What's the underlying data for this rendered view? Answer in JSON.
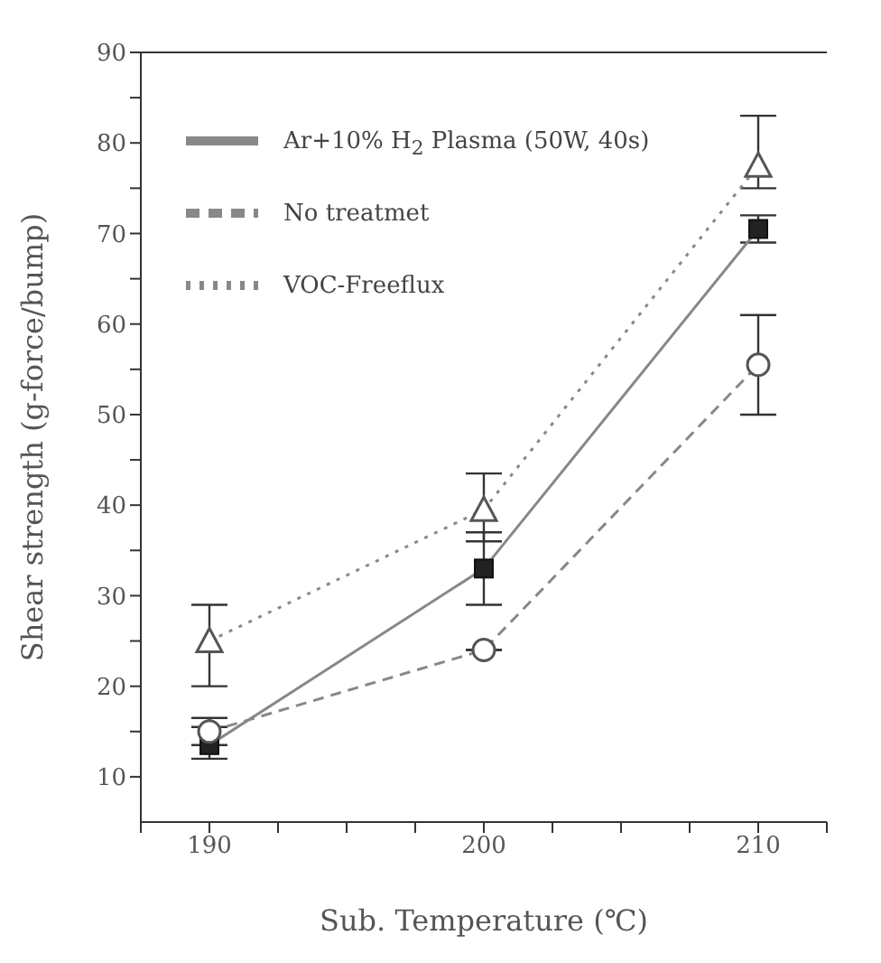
{
  "chart_data": {
    "type": "line",
    "xlabel": "Sub. Temperature (℃)",
    "ylabel": "Shear strength (g-force/bump)",
    "x": [
      190,
      200,
      210
    ],
    "xlim": [
      187.5,
      212.5
    ],
    "xticks": [
      {
        "value": 187.5,
        "label": null
      },
      190,
      {
        "value": 192.5,
        "label": null
      },
      {
        "value": 195,
        "label": null
      },
      {
        "value": 197.5,
        "label": null
      },
      200,
      {
        "value": 202.5,
        "label": null
      },
      {
        "value": 205,
        "label": null
      },
      {
        "value": 207.5,
        "label": null
      },
      210,
      {
        "value": 212.5,
        "label": null
      }
    ],
    "ylim": [
      5,
      90
    ],
    "yticks": [
      10,
      {
        "value": 15,
        "label": null
      },
      20,
      {
        "value": 25,
        "label": null
      },
      30,
      {
        "value": 35,
        "label": null
      },
      40,
      {
        "value": 45,
        "label": null
      },
      50,
      {
        "value": 55,
        "label": null
      },
      60,
      {
        "value": 65,
        "label": null
      },
      70,
      {
        "value": 75,
        "label": null
      },
      80,
      {
        "value": 85,
        "label": null
      },
      90
    ],
    "grid": false,
    "legend": "top left",
    "series": [
      {
        "name": "Ar+10% H$_{2}$ Plasma (50W, 40s)",
        "color": "#888888",
        "values": [
          13.5,
          33,
          70.5
        ],
        "errors": [
          [
            12,
            15.5
          ],
          [
            29,
            37
          ],
          [
            69,
            72
          ]
        ],
        "marker": "square",
        "line_style": "solid"
      },
      {
        "name": "No treatmet",
        "color": "#888888",
        "values": [
          15,
          24,
          55.5
        ],
        "errors": [
          [
            13.5,
            16.5
          ],
          null,
          [
            50,
            61
          ]
        ],
        "marker": "circle",
        "line_style": "dashed"
      },
      {
        "name": "VOC-Freeflux",
        "color": "#888888",
        "values": [
          25,
          39.5,
          77.5
        ],
        "errors": [
          [
            20,
            29
          ],
          [
            36,
            43.5
          ],
          [
            75,
            83
          ]
        ],
        "marker": "triangle",
        "line_style": "dotted"
      }
    ]
  }
}
